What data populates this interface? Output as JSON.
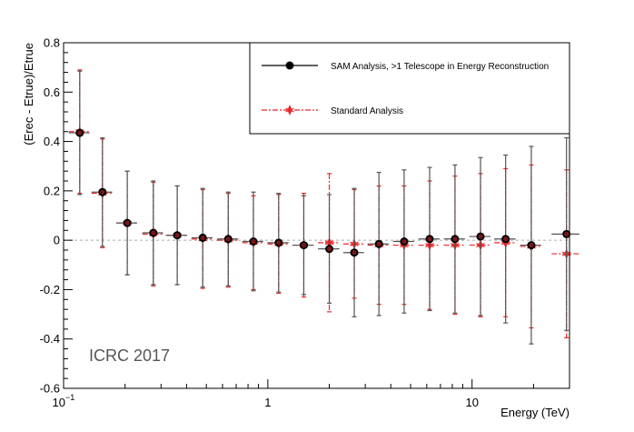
{
  "chart_data": {
    "type": "scatter",
    "title": "",
    "xlabel": "Energy (TeV)",
    "ylabel": "(Erec - Etrue)/Etrue",
    "xscale": "log",
    "xlim": [
      0.1,
      30
    ],
    "ylim": [
      -0.6,
      0.8
    ],
    "yticks": [
      "-0.6",
      "-0.4",
      "-0.2",
      "0",
      "0.2",
      "0.4",
      "0.6",
      "0.8"
    ],
    "xtick_labels": [
      {
        "value": 0.1,
        "base": "10",
        "exp": "−1"
      },
      {
        "value": 1,
        "base": "1",
        "exp": ""
      },
      {
        "value": 10,
        "base": "10",
        "exp": ""
      }
    ],
    "annotation": "ICRC 2017",
    "legend_position": "top-right",
    "series": [
      {
        "name": "SAM Analysis, >1 Telescope in Energy Reconstruction",
        "color": "#000000",
        "marker": "circle",
        "x": [
          0.12,
          0.155,
          0.205,
          0.275,
          0.36,
          0.48,
          0.64,
          0.85,
          1.13,
          1.5,
          2.0,
          2.65,
          3.5,
          4.65,
          6.2,
          8.25,
          11.0,
          14.6,
          19.5,
          29.0
        ],
        "xerr": [
          0.014,
          0.018,
          0.024,
          0.032,
          0.043,
          0.057,
          0.076,
          0.1,
          0.134,
          0.18,
          0.24,
          0.31,
          0.42,
          0.55,
          0.74,
          0.98,
          1.3,
          1.75,
          2.3,
          4.5
        ],
        "y": [
          0.435,
          0.195,
          0.07,
          0.03,
          0.02,
          0.01,
          0.005,
          -0.005,
          -0.01,
          -0.02,
          -0.035,
          -0.05,
          -0.015,
          -0.005,
          0.005,
          0.005,
          0.015,
          0.005,
          -0.02,
          0.025
        ],
        "yerr": [
          0.25,
          0.22,
          0.21,
          0.21,
          0.2,
          0.2,
          0.19,
          0.2,
          0.2,
          0.2,
          0.22,
          0.26,
          0.29,
          0.29,
          0.29,
          0.3,
          0.32,
          0.34,
          0.4,
          0.39
        ]
      },
      {
        "name": "Standard Analysis",
        "color": "#e8282a",
        "marker": "star",
        "x": [
          0.12,
          0.155,
          0.205,
          0.275,
          0.36,
          0.48,
          0.64,
          0.85,
          1.13,
          1.5,
          2.0,
          2.65,
          3.5,
          4.65,
          6.2,
          8.25,
          11.0,
          14.6,
          19.5,
          29.0
        ],
        "xerr": [
          0.014,
          0.018,
          0.024,
          0.032,
          0.043,
          0.057,
          0.076,
          0.1,
          0.134,
          0.18,
          0.24,
          0.31,
          0.42,
          0.55,
          0.74,
          0.98,
          1.3,
          1.75,
          2.3,
          4.5
        ],
        "y": [
          0.44,
          0.19,
          0.07,
          0.025,
          0.02,
          0.005,
          0.0,
          -0.01,
          -0.015,
          -0.02,
          -0.01,
          -0.015,
          -0.02,
          -0.02,
          -0.02,
          -0.02,
          -0.02,
          -0.01,
          -0.025,
          -0.055
        ],
        "yerr": [
          0.25,
          0.22,
          0.21,
          0.21,
          0.2,
          0.2,
          0.19,
          0.19,
          0.2,
          0.21,
          0.28,
          0.22,
          0.24,
          0.24,
          0.26,
          0.28,
          0.29,
          0.3,
          0.33,
          0.34
        ]
      }
    ]
  }
}
